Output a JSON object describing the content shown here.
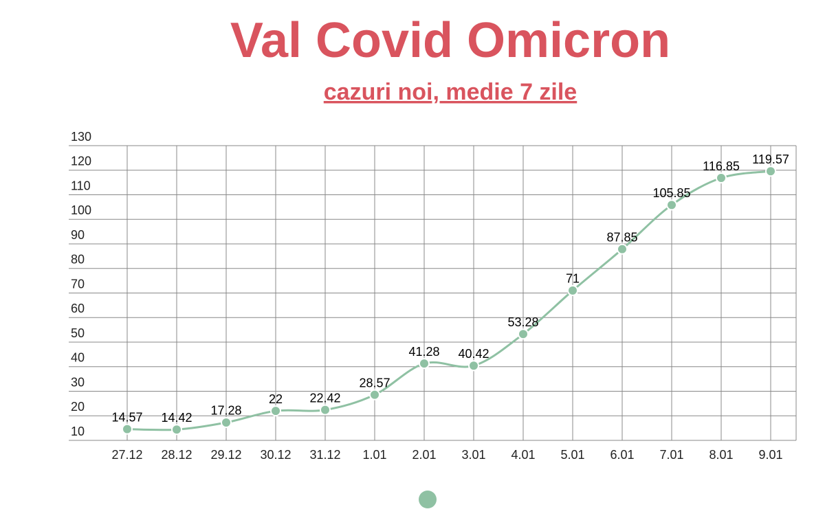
{
  "chart_data": {
    "type": "line",
    "title": "Val Covid Omicron",
    "subtitle": "cazuri noi, medie 7 zile",
    "categories": [
      "27.12",
      "28.12",
      "29.12",
      "30.12",
      "31.12",
      "1.01",
      "2.01",
      "3.01",
      "4.01",
      "5.01",
      "6.01",
      "7.01",
      "8.01",
      "9.01"
    ],
    "series": [
      {
        "color": "#8fc1a3",
        "values": [
          14.57,
          14.42,
          17.28,
          22,
          22.42,
          28.57,
          41.28,
          40.42,
          53.28,
          71,
          87.85,
          105.85,
          116.85,
          119.57
        ]
      }
    ],
    "ylim": [
      10,
      130
    ],
    "yticks": [
      10,
      20,
      30,
      40,
      50,
      60,
      70,
      80,
      90,
      100,
      110,
      120,
      130
    ],
    "grid": true,
    "title_color": "#d9545e"
  }
}
